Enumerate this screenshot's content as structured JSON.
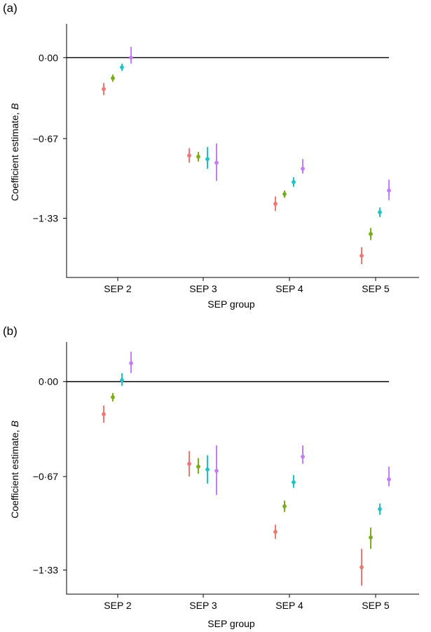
{
  "colors": [
    "#f07575",
    "#7aab1e",
    "#1ec4c4",
    "#c27ff0"
  ],
  "chart_data": [
    {
      "type": "scatter",
      "panel_label": "(a)",
      "xlabel": "SEP group",
      "ylabel_main": "Coefficient estimate, ",
      "ylabel_italic": "B",
      "categories": [
        "SEP 2",
        "SEP 3",
        "SEP 4",
        "SEP 5"
      ],
      "yticks": [
        "0·00",
        "−0·67",
        "−1·33"
      ],
      "ytick_values": [
        0,
        -0.67,
        -1.33
      ],
      "ylim": [
        -1.82,
        0.28
      ],
      "reference_line": 0,
      "series": [
        {
          "estimates": [
            -0.26,
            -0.81,
            -1.21,
            -1.64
          ],
          "lower": [
            -0.31,
            -0.87,
            -1.27,
            -1.71
          ],
          "upper": [
            -0.21,
            -0.75,
            -1.15,
            -1.57
          ]
        },
        {
          "estimates": [
            -0.17,
            -0.82,
            -1.13,
            -1.46
          ],
          "lower": [
            -0.2,
            -0.86,
            -1.16,
            -1.51
          ],
          "upper": [
            -0.14,
            -0.78,
            -1.1,
            -1.41
          ]
        },
        {
          "estimates": [
            -0.08,
            -0.84,
            -1.03,
            -1.28
          ],
          "lower": [
            -0.11,
            -0.92,
            -1.07,
            -1.32
          ],
          "upper": [
            -0.05,
            -0.74,
            -0.99,
            -1.24
          ]
        },
        {
          "estimates": [
            0.0,
            -0.87,
            -0.92,
            -1.1
          ],
          "lower": [
            -0.05,
            -1.02,
            -0.96,
            -1.18
          ],
          "upper": [
            0.09,
            -0.71,
            -0.84,
            -1.01
          ]
        }
      ]
    },
    {
      "type": "scatter",
      "panel_label": "(b)",
      "xlabel": "SEP group",
      "ylabel_main": "Coefficient estimate, ",
      "ylabel_italic": "B",
      "categories": [
        "SEP 2",
        "SEP 3",
        "SEP 4",
        "SEP 5"
      ],
      "yticks": [
        "0·00",
        "−0·67",
        "−1·33"
      ],
      "ytick_values": [
        0,
        -0.67,
        -1.33
      ],
      "ylim": [
        -1.5,
        0.28
      ],
      "reference_line": 0,
      "series": [
        {
          "estimates": [
            -0.23,
            -0.58,
            -1.06,
            -1.31
          ],
          "lower": [
            -0.29,
            -0.67,
            -1.11,
            -1.44
          ],
          "upper": [
            -0.17,
            -0.49,
            -1.01,
            -1.18
          ]
        },
        {
          "estimates": [
            -0.11,
            -0.6,
            -0.88,
            -1.1
          ],
          "lower": [
            -0.14,
            -0.65,
            -0.92,
            -1.18
          ],
          "upper": [
            -0.08,
            -0.54,
            -0.84,
            -1.03
          ]
        },
        {
          "estimates": [
            0.01,
            -0.62,
            -0.71,
            -0.9
          ],
          "lower": [
            -0.03,
            -0.72,
            -0.75,
            -0.94
          ],
          "upper": [
            0.06,
            -0.52,
            -0.66,
            -0.86
          ]
        },
        {
          "estimates": [
            0.13,
            -0.63,
            -0.53,
            -0.69
          ],
          "lower": [
            0.06,
            -0.8,
            -0.58,
            -0.74
          ],
          "upper": [
            0.21,
            -0.45,
            -0.45,
            -0.6
          ]
        }
      ]
    }
  ]
}
